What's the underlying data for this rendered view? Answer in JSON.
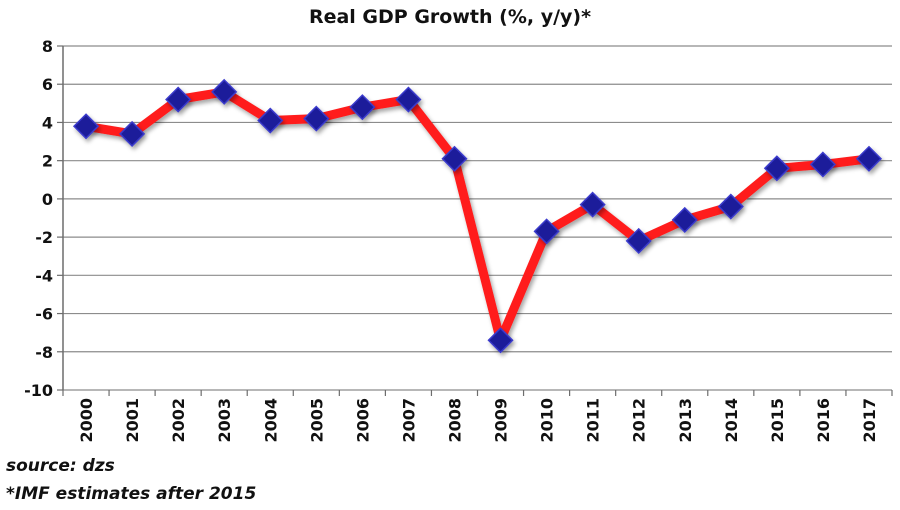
{
  "chart_data": {
    "type": "line",
    "title": "Real GDP Growth (%, y/y)*",
    "xlabel": "",
    "ylabel": "",
    "categories": [
      "2000",
      "2001",
      "2002",
      "2003",
      "2004",
      "2005",
      "2006",
      "2007",
      "2008",
      "2009",
      "2010",
      "2011",
      "2012",
      "2013",
      "2014",
      "2015",
      "2016",
      "2017"
    ],
    "series": [
      {
        "values": [
          3.8,
          3.4,
          5.2,
          5.6,
          4.1,
          4.2,
          4.8,
          5.2,
          2.1,
          -7.4,
          -1.7,
          -0.3,
          -2.2,
          -1.1,
          -0.4,
          1.6,
          1.8,
          2.1
        ]
      }
    ],
    "ylim": [
      -10,
      8
    ],
    "yticks": [
      -10,
      -8,
      -6,
      -4,
      -2,
      0,
      2,
      4,
      6,
      8
    ],
    "grid": true,
    "line_color": "#ff1a1a",
    "marker_color": "#1f1f9a"
  },
  "notes": {
    "source": "source: dzs",
    "estimate": "*IMF estimates after 2015"
  }
}
